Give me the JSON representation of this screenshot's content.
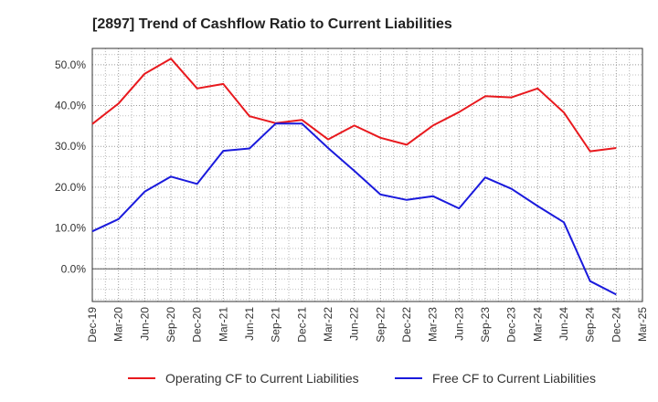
{
  "chart_data": {
    "type": "line",
    "title": "[2897]  Trend of Cashflow Ratio to Current Liabilities",
    "xlabel": "",
    "ylabel": "",
    "categories": [
      "Dec-19",
      "Mar-20",
      "Jun-20",
      "Sep-20",
      "Dec-20",
      "Mar-21",
      "Jun-21",
      "Sep-21",
      "Dec-21",
      "Mar-22",
      "Jun-22",
      "Sep-22",
      "Dec-22",
      "Mar-23",
      "Jun-23",
      "Sep-23",
      "Dec-23",
      "Mar-24",
      "Jun-24",
      "Sep-24",
      "Dec-24",
      "Mar-25"
    ],
    "ylim": [
      -8,
      54
    ],
    "y_ticks": [
      0,
      10,
      20,
      30,
      40,
      50
    ],
    "y_tick_labels": [
      "0.0%",
      "10.0%",
      "20.0%",
      "30.0%",
      "40.0%",
      "50.0%"
    ],
    "grid": true,
    "legend_position": "bottom",
    "series": [
      {
        "name": "Operating CF to Current Liabilities",
        "color": "#e8191e",
        "values": [
          35.5,
          40.5,
          47.8,
          51.5,
          44.2,
          45.3,
          37.4,
          35.7,
          36.5,
          31.7,
          35.1,
          32.1,
          30.4,
          35.1,
          38.4,
          42.3,
          42.0,
          44.2,
          38.3,
          28.8,
          29.6,
          null
        ]
      },
      {
        "name": "Free CF to Current Liabilities",
        "color": "#1a1adc",
        "values": [
          9.2,
          12.2,
          18.9,
          22.6,
          20.8,
          28.9,
          29.5,
          35.6,
          35.6,
          29.6,
          24.0,
          18.2,
          16.9,
          17.8,
          14.8,
          22.4,
          19.6,
          15.4,
          11.4,
          -3.0,
          -6.3,
          null
        ]
      }
    ]
  }
}
